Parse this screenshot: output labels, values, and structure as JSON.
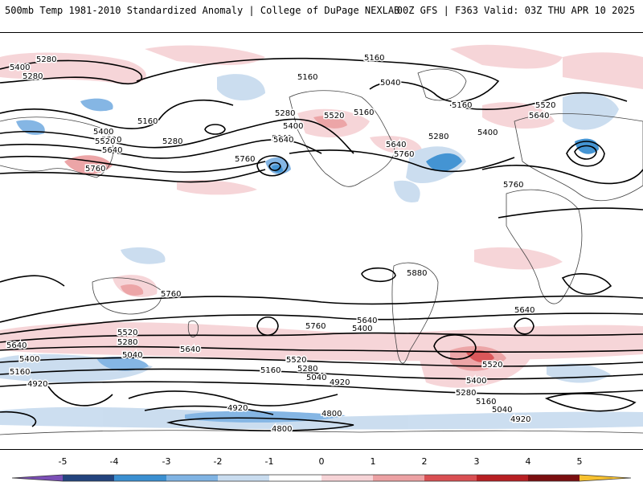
{
  "header": {
    "left": "500mb Temp 1981-2010 Standardized Anomaly | College of DuPage NEXLAB",
    "right": "00Z GFS | F363 Valid: 03Z THU APR 10 2025"
  },
  "colors": {
    "neg5": "#7b4fb6",
    "neg4": "#23447e",
    "neg3": "#3a8fd1",
    "neg2": "#7fb3e3",
    "neg1": "#c9dcef",
    "zero": "#ffffff",
    "pos1": "#f6d3d6",
    "pos2": "#eca1a3",
    "pos3": "#d94f52",
    "pos4": "#b71f22",
    "pos5": "#7a0e10",
    "pos6": "#f7c12f"
  },
  "contour_labels": [
    "5400",
    "5280",
    "5160",
    "5040",
    "5160",
    "5280",
    "5520",
    "5640",
    "5400",
    "5160",
    "5280",
    "5520",
    "5640",
    "5400",
    "5520",
    "5640",
    "5160",
    "5280",
    "5760",
    "5760",
    "5280",
    "5640",
    "5760",
    "5160",
    "5400",
    "5520",
    "5640",
    "5760",
    "5880",
    "5760",
    "5640",
    "5760",
    "5640",
    "5400",
    "5520",
    "5280",
    "5040",
    "5640",
    "5400",
    "5160",
    "4920",
    "5640",
    "5520",
    "5160",
    "5280",
    "5040",
    "4920",
    "5520",
    "5400",
    "5280",
    "5160",
    "5040",
    "4920",
    "4920",
    "4800",
    "4800"
  ],
  "colorbar": {
    "ticks": [
      "-5",
      "-4",
      "-3",
      "-2",
      "-1",
      "0",
      "1",
      "2",
      "3",
      "4",
      "5"
    ]
  }
}
